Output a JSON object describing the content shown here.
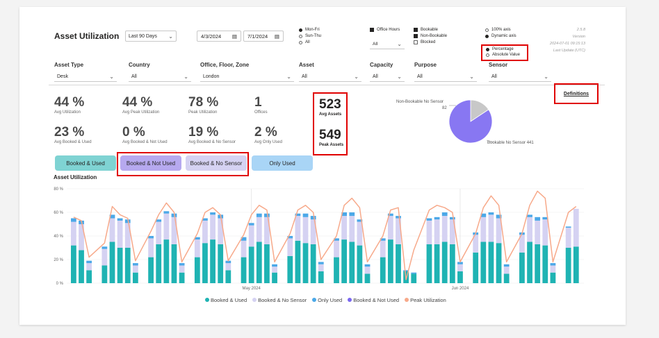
{
  "header": {
    "title": "Asset Utilization",
    "period": "Last 90 Days",
    "start_date": "4/3/2024",
    "end_date": "7/1/2024"
  },
  "day_radios": [
    {
      "label": "Mon-Fri",
      "checked": true
    },
    {
      "label": "Sun-Thu",
      "checked": false
    },
    {
      "label": "All",
      "checked": false
    }
  ],
  "office_hours": {
    "label": "Office Hours",
    "checked": true,
    "select": "All"
  },
  "bookable": [
    {
      "label": "Bookable",
      "checked": true
    },
    {
      "label": "Non-Bookable",
      "checked": true
    },
    {
      "label": "Blocked",
      "checked": false
    }
  ],
  "axis_radios": [
    {
      "label": "100% axis",
      "checked": false
    },
    {
      "label": "Dynamic axis",
      "checked": true
    }
  ],
  "value_radios": [
    {
      "label": "Percentage",
      "checked": true
    },
    {
      "label": "Absolute Value",
      "checked": false
    }
  ],
  "version": {
    "number": "2.5.8",
    "label": "Version",
    "timestamp": "2024-07-01 09:15:13",
    "update_label": "Last Update (UTC)"
  },
  "filters": [
    {
      "label": "Asset Type",
      "value": "Desk"
    },
    {
      "label": "Country",
      "value": "All"
    },
    {
      "label": "Office, Floor, Zone",
      "value": "London"
    },
    {
      "label": "Asset",
      "value": "All"
    },
    {
      "label": "Capacity",
      "value": "All"
    },
    {
      "label": "Purpose",
      "value": "All"
    },
    {
      "label": "Sensor",
      "value": "All"
    }
  ],
  "definitions_label": "Definitions",
  "kpis": [
    {
      "value": "44 %",
      "label": "Avg Utilization"
    },
    {
      "value": "44 %",
      "label": "Avg Peak Utilization"
    },
    {
      "value": "78 %",
      "label": "Peak Utilization"
    },
    {
      "value": "1",
      "label": "Offices"
    },
    {
      "value": "23 %",
      "label": "Avg Booked & Used"
    },
    {
      "value": "0 %",
      "label": "Avg Booked & Not Used"
    },
    {
      "value": "19 %",
      "label": "Avg Booked & No Sensor"
    },
    {
      "value": "2 %",
      "label": "Avg Only Used"
    }
  ],
  "assets": {
    "avg_value": "523",
    "avg_label": "Avg Assets",
    "peak_value": "549",
    "peak_label": "Peak Assets"
  },
  "pie": {
    "slices": [
      {
        "label": "Non-Bookable No Sensor",
        "value": 82,
        "color": "#c8c8c8"
      },
      {
        "label": "Bookable No Sensor",
        "value": 441,
        "color": "#8877f2"
      }
    ],
    "label_top": "Non-Bookable No Sensor",
    "label_top_value": "82",
    "label_right": "Bookable No Sensor 441"
  },
  "buttons": [
    {
      "label": "Booked & Used",
      "color": "#7fd3d3"
    },
    {
      "label": "Booked & Not Used",
      "color": "#b6a9ef"
    },
    {
      "label": "Booked & No Sensor",
      "color": "#d5d2f2"
    },
    {
      "label": "Only Used",
      "color": "#a9d5f6"
    }
  ],
  "chart_data": {
    "type": "bar",
    "title": "Asset Utilization",
    "ylim": [
      0,
      80
    ],
    "yticks": [
      "0 %",
      "20 %",
      "40 %",
      "60 %",
      "80 %"
    ],
    "month_labels": [
      {
        "label": "May 2024",
        "index": 19
      },
      {
        "label": "Jun 2024",
        "index": 42
      }
    ],
    "gaps_after": [
      2,
      7,
      12,
      17,
      22,
      27,
      32,
      37,
      42,
      47,
      52
    ],
    "series": [
      {
        "name": "Booked & Used",
        "color": "#1fb3b3",
        "values": [
          32,
          28,
          11,
          15,
          35,
          30,
          30,
          9,
          22,
          33,
          37,
          33,
          9,
          22,
          34,
          37,
          33,
          11,
          22,
          31,
          35,
          33,
          9,
          23,
          36,
          34,
          33,
          10,
          22,
          37,
          35,
          32,
          8,
          22,
          37,
          33,
          10,
          8,
          33,
          33,
          35,
          33,
          10,
          26,
          35,
          35,
          34,
          8,
          26,
          35,
          33,
          32,
          9,
          30,
          31
        ]
      },
      {
        "name": "Booked & No Sensor",
        "color": "#d5d2f2",
        "values": [
          20,
          22,
          6,
          14,
          20,
          23,
          21,
          6,
          16,
          19,
          22,
          23,
          6,
          15,
          19,
          21,
          22,
          6,
          14,
          18,
          21,
          23,
          5,
          15,
          21,
          22,
          21,
          6,
          14,
          20,
          22,
          20,
          6,
          14,
          20,
          22,
          0,
          0,
          20,
          21,
          22,
          21,
          6,
          15,
          21,
          23,
          21,
          6,
          15,
          21,
          20,
          22,
          6,
          17,
          32
        ]
      },
      {
        "name": "Only Used",
        "color": "#4ba8e8",
        "values": [
          3,
          3,
          2,
          2,
          3,
          2,
          3,
          2,
          2,
          2,
          2,
          3,
          2,
          2,
          2,
          2,
          3,
          2,
          3,
          2,
          3,
          3,
          2,
          2,
          2,
          3,
          3,
          2,
          2,
          3,
          3,
          2,
          2,
          2,
          2,
          2,
          1,
          1,
          2,
          2,
          3,
          2,
          2,
          2,
          3,
          2,
          3,
          2,
          2,
          2,
          3,
          2,
          2,
          1,
          0
        ]
      },
      {
        "name": "Booked & Not Used",
        "color": "#7a67f0",
        "values": [
          0,
          0,
          0,
          0,
          0,
          0,
          0,
          0,
          0,
          0,
          0,
          0,
          0,
          0,
          0,
          0,
          0,
          0,
          0,
          0,
          0,
          0,
          0,
          0,
          0,
          0,
          0,
          0,
          0,
          0,
          0,
          0,
          0,
          0,
          0,
          0,
          0,
          0,
          0,
          0,
          0,
          0,
          0,
          0,
          0,
          0,
          0,
          0,
          0,
          0,
          0,
          0,
          0,
          0,
          0
        ]
      },
      {
        "name": "Peak Utilization",
        "color": "#f7a98a",
        "type": "line",
        "values": [
          56,
          53,
          22,
          34,
          65,
          58,
          55,
          19,
          44,
          58,
          68,
          60,
          18,
          42,
          60,
          64,
          58,
          19,
          41,
          58,
          66,
          62,
          18,
          42,
          62,
          66,
          60,
          20,
          40,
          66,
          72,
          64,
          18,
          40,
          62,
          64,
          3,
          28,
          62,
          66,
          64,
          60,
          18,
          42,
          64,
          74,
          66,
          18,
          42,
          66,
          78,
          72,
          18,
          60,
          65
        ]
      }
    ]
  }
}
